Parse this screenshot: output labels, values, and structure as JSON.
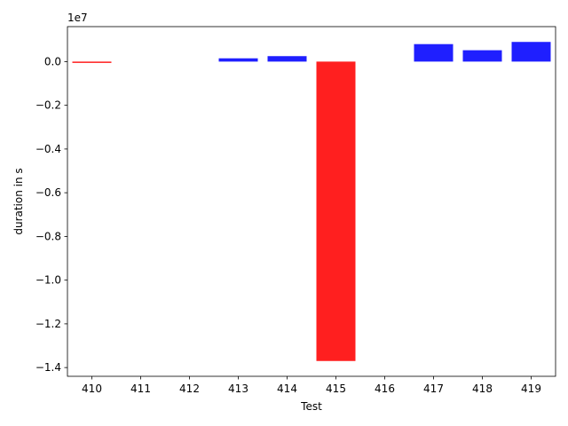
{
  "chart_data": {
    "type": "bar",
    "xlabel": "Test",
    "ylabel": "duration in s",
    "y_offset_text": "1e7",
    "ylim": [
      -14400000,
      1600000
    ],
    "categories": [
      "410",
      "411",
      "412",
      "413",
      "414",
      "415",
      "416",
      "417",
      "418",
      "419"
    ],
    "values": [
      -50000,
      0,
      0,
      150000,
      250000,
      -13700000,
      0,
      800000,
      520000,
      900000
    ],
    "bar_colors": [
      "#ff0000",
      "#0000ff",
      "#0000ff",
      "#0000ff",
      "#0000ff",
      "#ff0000",
      "#0000ff",
      "#0000ff",
      "#0000ff",
      "#0000ff"
    ],
    "yticks": [
      0,
      -2000000,
      -4000000,
      -6000000,
      -8000000,
      -10000000,
      -12000000,
      -14000000
    ],
    "ytick_labels": [
      "0.0",
      "−0.2",
      "−0.4",
      "−0.6",
      "−0.8",
      "−1.0",
      "−1.2",
      "−1.4"
    ],
    "grid": false,
    "legend": "none"
  }
}
